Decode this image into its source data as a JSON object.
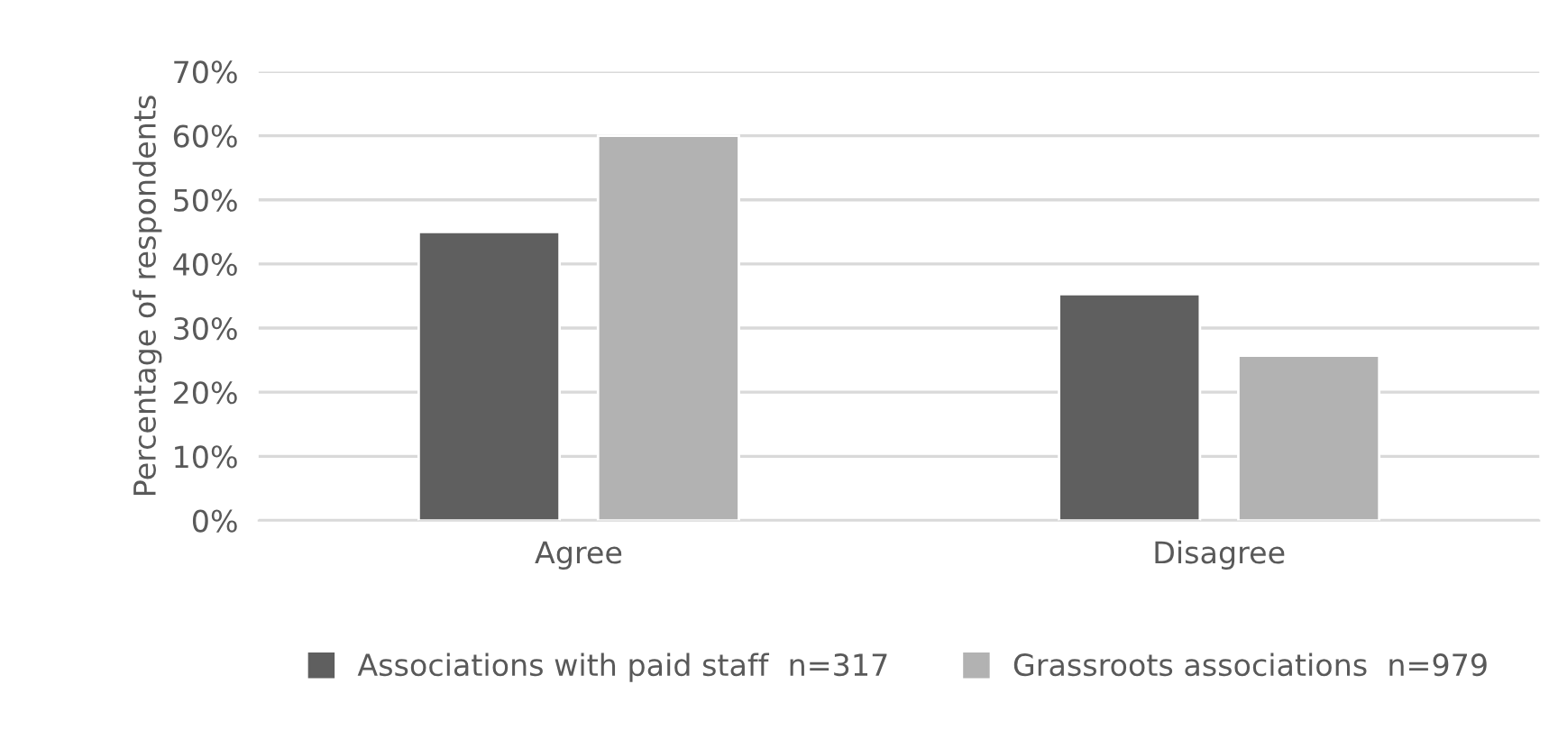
{
  "chart_data": {
    "type": "bar",
    "ylabel": "Percentage of respondents",
    "categories": [
      "Agree",
      "Disagree"
    ],
    "series": [
      {
        "name": "Associations with paid staff  n=317",
        "color": "#5f5f5f",
        "values": [
          45,
          35.3
        ]
      },
      {
        "name": "Grassroots associations  n=979",
        "color": "#b2b2b2",
        "values": [
          60,
          25.7
        ]
      }
    ],
    "ylim": [
      0,
      70
    ],
    "yticks": [
      {
        "value": 0,
        "label": "0%"
      },
      {
        "value": 10,
        "label": "10%"
      },
      {
        "value": 20,
        "label": "20%"
      },
      {
        "value": 30,
        "label": "30%"
      },
      {
        "value": 40,
        "label": "40%"
      },
      {
        "value": 50,
        "label": "50%"
      },
      {
        "value": 60,
        "label": "60%"
      },
      {
        "value": 70,
        "label": "70%"
      }
    ],
    "grid": "y",
    "legend": "bottom"
  }
}
